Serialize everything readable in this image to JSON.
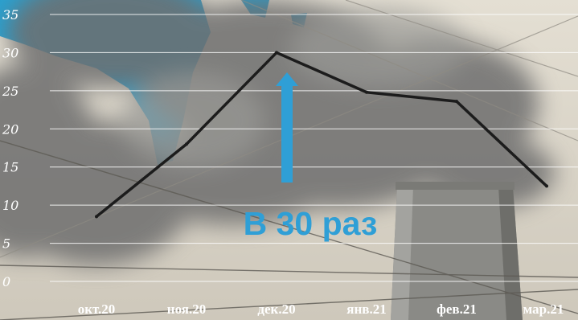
{
  "chart_data": {
    "type": "line",
    "categories": [
      "окт.20",
      "ноя.20",
      "дек.20",
      "янв.21",
      "фев.21",
      "мар.21"
    ],
    "series": [
      {
        "values": [
          8.5,
          18,
          30,
          24.8,
          23.6,
          12.5
        ]
      }
    ],
    "ylim": [
      0,
      35
    ],
    "yticks": [
      0,
      5,
      10,
      15,
      20,
      25,
      30,
      35
    ],
    "grid": true,
    "legend": "none",
    "annotation": "В 30 раз",
    "colors": {
      "line": "#1c1c1c",
      "grid": "#ffffff",
      "tick_text": "#ffffff",
      "annotation": "#2f9fd6",
      "arrow": "#2f9fd6"
    }
  }
}
